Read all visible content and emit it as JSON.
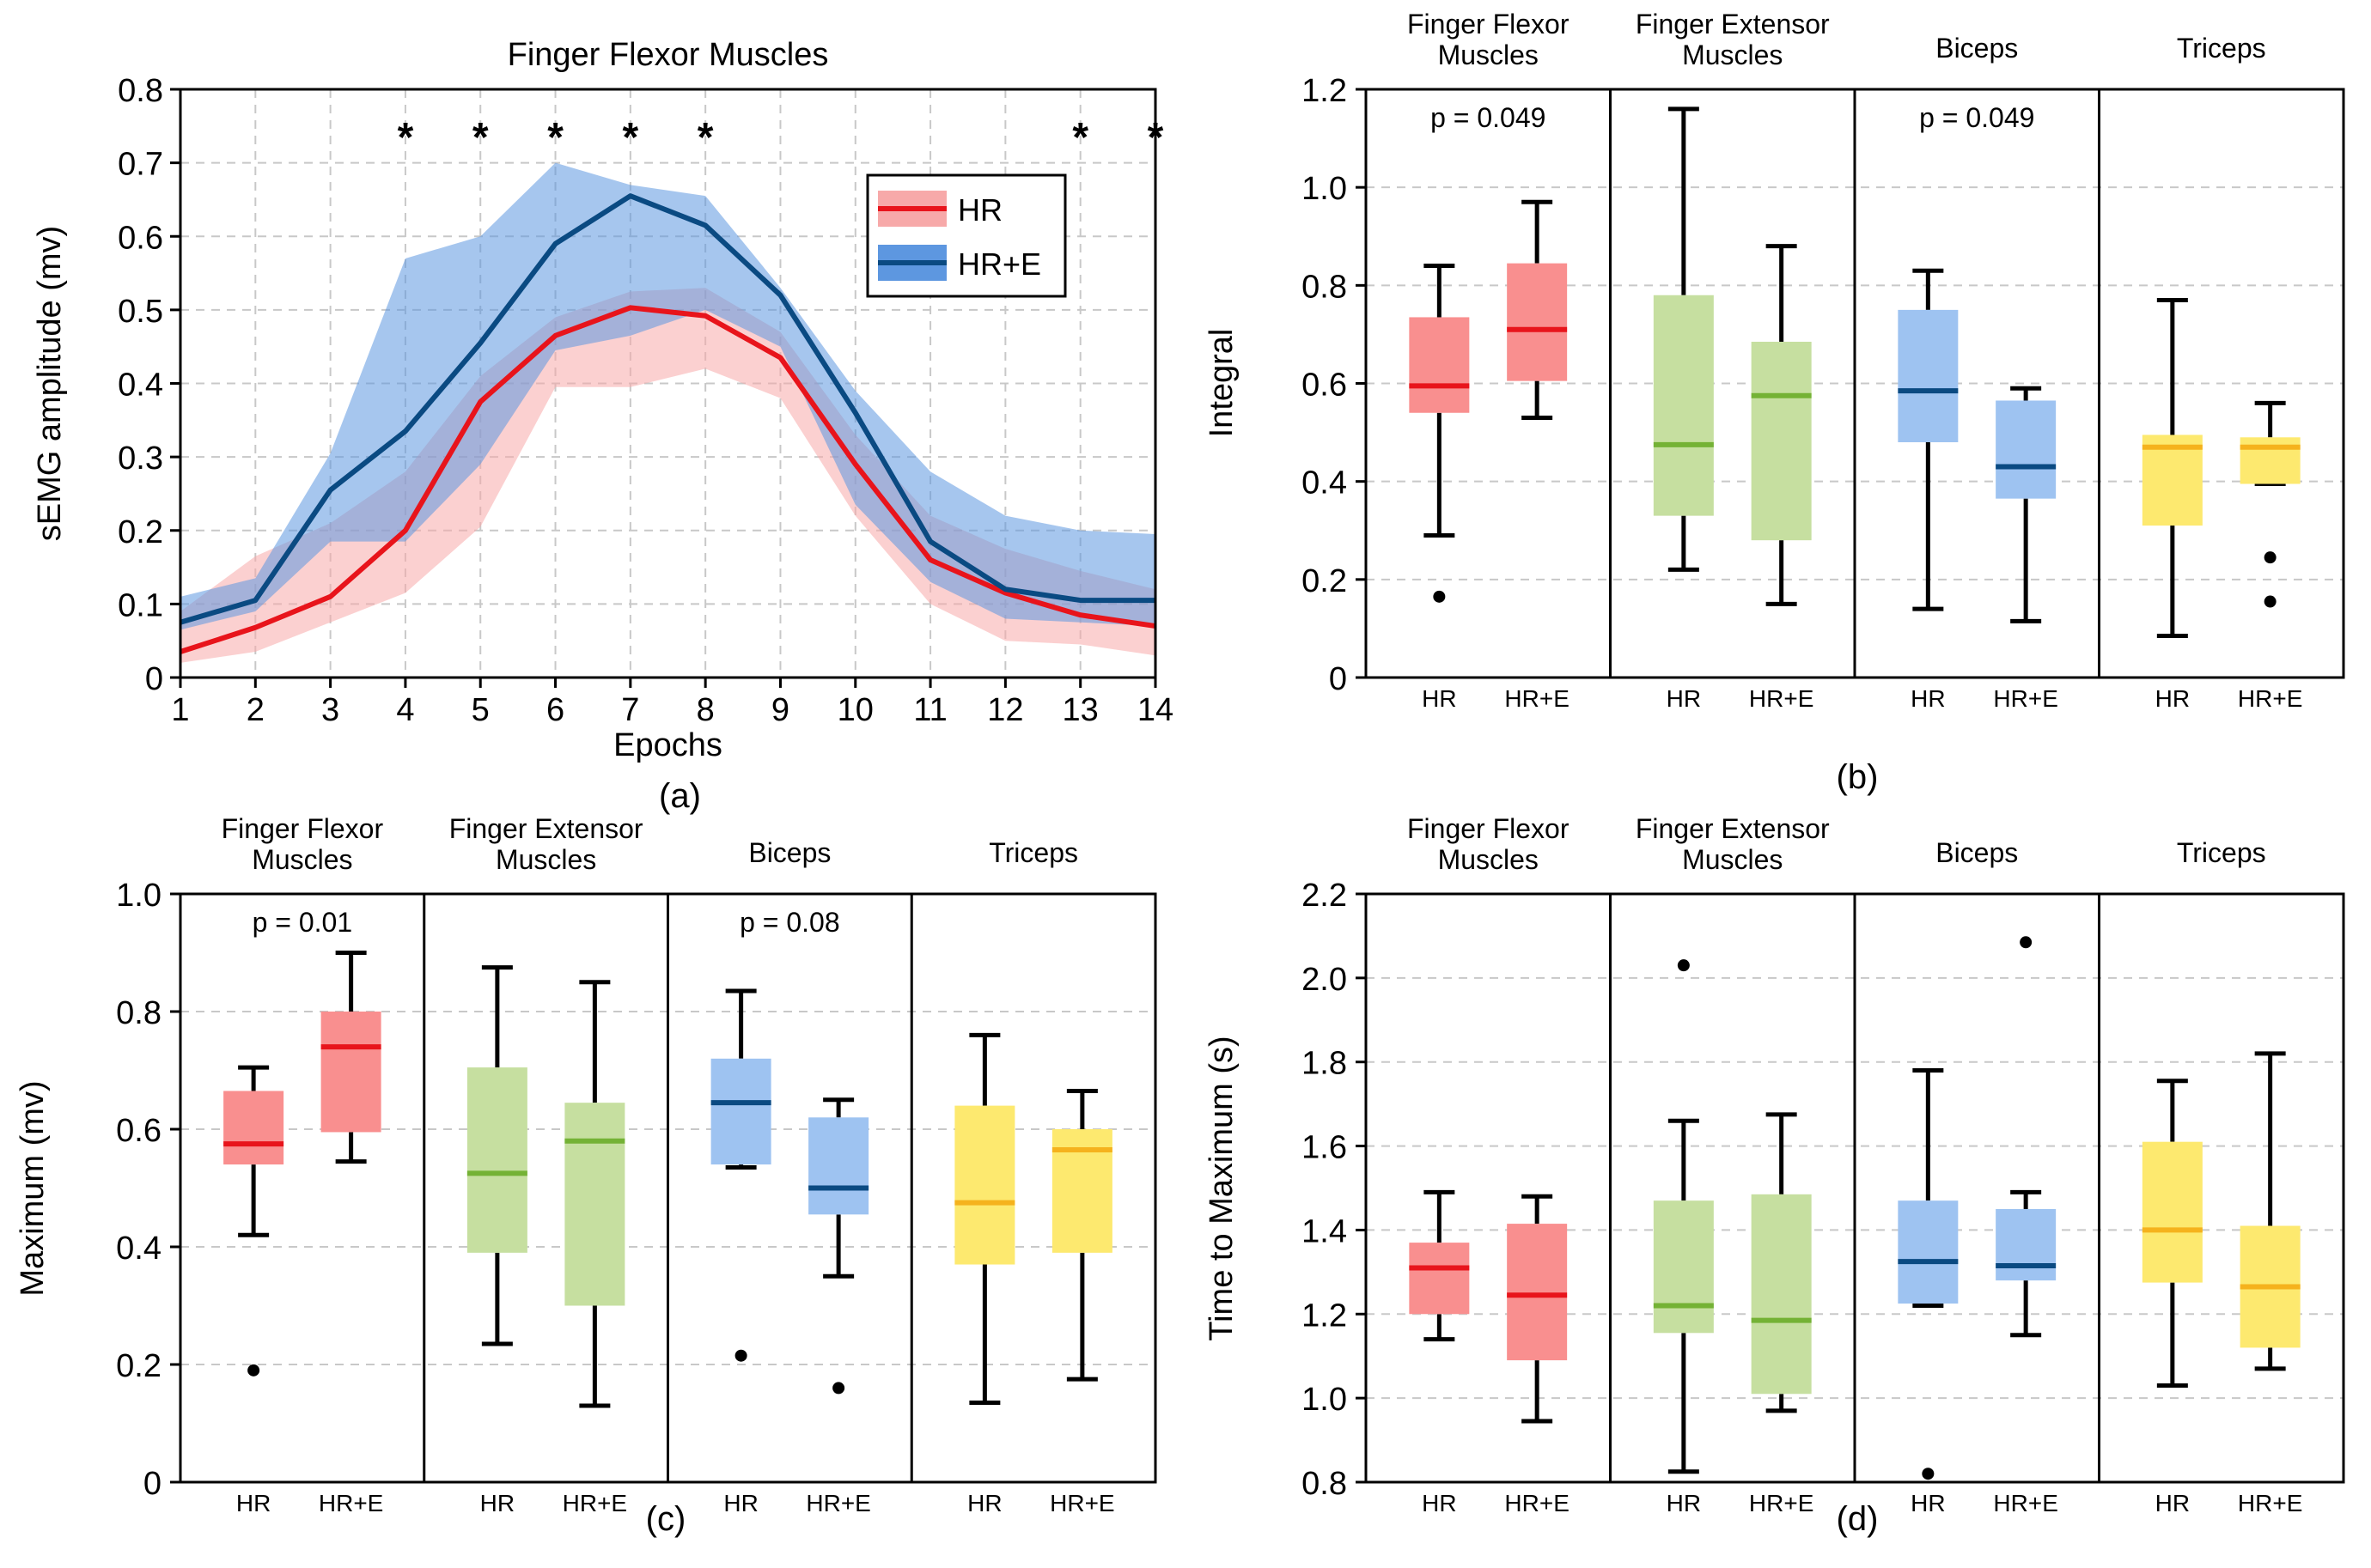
{
  "colors": {
    "hr_line": "#e8141b",
    "hr_band": "#f7a9a9",
    "hre_line": "#0a4a82",
    "hre_band": "#5d97e0",
    "overlap_line": "#9c2a52",
    "flexor_median": "#e8141b",
    "flexor_box": "#f98f8f",
    "extensor_median": "#74b235",
    "extensor_box": "#c6dfa0",
    "biceps_median": "#0a4a82",
    "biceps_box": "#9ec3f1",
    "triceps_median": "#f5b21d",
    "triceps_box": "#fde96f"
  },
  "chart_data": [
    {
      "id": "a",
      "type": "line",
      "panel_label": "(a)",
      "title": "Finger Flexor Muscles",
      "xlabel": "Epochs",
      "ylabel": "sEMG amplitude (mv)",
      "xlim": [
        1,
        14
      ],
      "ylim": [
        0,
        0.8
      ],
      "xticks": [
        "1",
        "2",
        "3",
        "4",
        "5",
        "6",
        "7",
        "8",
        "9",
        "10",
        "11",
        "12",
        "13",
        "14"
      ],
      "yticks": [
        "0",
        "0.1",
        "0.2",
        "0.3",
        "0.4",
        "0.5",
        "0.6",
        "0.7",
        "0.8"
      ],
      "x": [
        1,
        2,
        3,
        4,
        5,
        6,
        7,
        8,
        9,
        10,
        11,
        12,
        13,
        14
      ],
      "series": [
        {
          "name": "HR",
          "values": [
            0.035,
            0.068,
            0.11,
            0.2,
            0.375,
            0.465,
            0.503,
            0.492,
            0.435,
            0.29,
            0.16,
            0.115,
            0.085,
            0.07
          ],
          "upper": [
            0.09,
            0.165,
            0.21,
            0.28,
            0.41,
            0.49,
            0.525,
            0.53,
            0.47,
            0.33,
            0.22,
            0.175,
            0.145,
            0.12
          ],
          "lower": [
            0.02,
            0.035,
            0.075,
            0.115,
            0.205,
            0.395,
            0.395,
            0.42,
            0.38,
            0.22,
            0.1,
            0.05,
            0.045,
            0.03
          ]
        },
        {
          "name": "HR+E",
          "values": [
            0.075,
            0.105,
            0.255,
            0.335,
            0.455,
            0.59,
            0.655,
            0.615,
            0.52,
            0.36,
            0.185,
            0.12,
            0.105,
            0.105
          ],
          "upper": [
            0.11,
            0.135,
            0.305,
            0.57,
            0.6,
            0.7,
            0.67,
            0.655,
            0.53,
            0.39,
            0.28,
            0.22,
            0.2,
            0.195
          ],
          "lower": [
            0.065,
            0.09,
            0.185,
            0.185,
            0.29,
            0.445,
            0.465,
            0.5,
            0.45,
            0.235,
            0.13,
            0.08,
            0.075,
            0.07
          ]
        }
      ],
      "significance_marker": "*",
      "significant_epochs": [
        4,
        5,
        6,
        7,
        8,
        13,
        14
      ],
      "legend": [
        "HR",
        "HR+E"
      ]
    },
    {
      "id": "b",
      "type": "box",
      "panel_label": "(b)",
      "ylabel": "Integral",
      "ylim": [
        0,
        1.2
      ],
      "yticks": [
        "0",
        "0.2",
        "0.4",
        "0.6",
        "0.8",
        "1.0",
        "1.2"
      ],
      "groups": [
        {
          "title": "Finger Flexor Muscles",
          "pvalue": "p = 0.049",
          "color": "flexor",
          "boxes": [
            {
              "label": "HR",
              "whisker_low": 0.29,
              "q1": 0.54,
              "median": 0.595,
              "q3": 0.735,
              "whisker_high": 0.84,
              "outliers": [
                0.165
              ]
            },
            {
              "label": "HR+E",
              "whisker_low": 0.53,
              "q1": 0.605,
              "median": 0.71,
              "q3": 0.845,
              "whisker_high": 0.97,
              "outliers": []
            }
          ]
        },
        {
          "title": "Finger Extensor Muscles",
          "pvalue": "",
          "color": "extensor",
          "boxes": [
            {
              "label": "HR",
              "whisker_low": 0.22,
              "q1": 0.33,
              "median": 0.475,
              "q3": 0.78,
              "whisker_high": 1.16,
              "outliers": []
            },
            {
              "label": "HR+E",
              "whisker_low": 0.15,
              "q1": 0.28,
              "median": 0.575,
              "q3": 0.685,
              "whisker_high": 0.88,
              "outliers": []
            }
          ]
        },
        {
          "title": "Biceps",
          "pvalue": "p = 0.049",
          "color": "biceps",
          "boxes": [
            {
              "label": "HR",
              "whisker_low": 0.14,
              "q1": 0.48,
              "median": 0.585,
              "q3": 0.75,
              "whisker_high": 0.83,
              "outliers": []
            },
            {
              "label": "HR+E",
              "whisker_low": 0.115,
              "q1": 0.365,
              "median": 0.43,
              "q3": 0.565,
              "whisker_high": 0.59,
              "outliers": []
            }
          ]
        },
        {
          "title": "Triceps",
          "pvalue": "",
          "color": "triceps",
          "boxes": [
            {
              "label": "HR",
              "whisker_low": 0.085,
              "q1": 0.31,
              "median": 0.47,
              "q3": 0.495,
              "whisker_high": 0.77,
              "outliers": []
            },
            {
              "label": "HR+E",
              "whisker_low": 0.395,
              "q1": 0.395,
              "median": 0.47,
              "q3": 0.49,
              "whisker_high": 0.56,
              "outliers": [
                0.245,
                0.155
              ]
            }
          ]
        }
      ]
    },
    {
      "id": "c",
      "type": "box",
      "panel_label": "(c)",
      "ylabel": "Maximum  (mv)",
      "ylim": [
        0,
        1.0
      ],
      "yticks": [
        "0",
        "0.2",
        "0.4",
        "0.6",
        "0.8",
        "1.0"
      ],
      "groups": [
        {
          "title": "Finger Flexor Muscles",
          "pvalue": "p = 0.01",
          "color": "flexor",
          "boxes": [
            {
              "label": "HR",
              "whisker_low": 0.42,
              "q1": 0.54,
              "median": 0.575,
              "q3": 0.665,
              "whisker_high": 0.705,
              "outliers": [
                0.19
              ]
            },
            {
              "label": "HR+E",
              "whisker_low": 0.545,
              "q1": 0.595,
              "median": 0.74,
              "q3": 0.8,
              "whisker_high": 0.9,
              "outliers": []
            }
          ]
        },
        {
          "title": "Finger Extensor Muscles",
          "pvalue": "",
          "color": "extensor",
          "boxes": [
            {
              "label": "HR",
              "whisker_low": 0.235,
              "q1": 0.39,
              "median": 0.525,
              "q3": 0.705,
              "whisker_high": 0.875,
              "outliers": []
            },
            {
              "label": "HR+E",
              "whisker_low": 0.13,
              "q1": 0.3,
              "median": 0.58,
              "q3": 0.645,
              "whisker_high": 0.85,
              "outliers": []
            }
          ]
        },
        {
          "title": "Biceps",
          "pvalue": "p = 0.08",
          "color": "biceps",
          "boxes": [
            {
              "label": "HR",
              "whisker_low": 0.535,
              "q1": 0.54,
              "median": 0.645,
              "q3": 0.72,
              "whisker_high": 0.835,
              "outliers": [
                0.215
              ]
            },
            {
              "label": "HR+E",
              "whisker_low": 0.35,
              "q1": 0.455,
              "median": 0.5,
              "q3": 0.62,
              "whisker_high": 0.65,
              "outliers": [
                0.16
              ]
            }
          ]
        },
        {
          "title": "Triceps",
          "pvalue": "",
          "color": "triceps",
          "boxes": [
            {
              "label": "HR",
              "whisker_low": 0.135,
              "q1": 0.37,
              "median": 0.475,
              "q3": 0.64,
              "whisker_high": 0.76,
              "outliers": []
            },
            {
              "label": "HR+E",
              "whisker_low": 0.175,
              "q1": 0.39,
              "median": 0.565,
              "q3": 0.6,
              "whisker_high": 0.665,
              "outliers": []
            }
          ]
        }
      ]
    },
    {
      "id": "d",
      "type": "box",
      "panel_label": "(d)",
      "ylabel": "Time to Maximum (s)",
      "ylim": [
        0.8,
        2.2
      ],
      "yticks": [
        "0.8",
        "1.0",
        "1.2",
        "1.4",
        "1.6",
        "1.8",
        "2.0",
        "2.2"
      ],
      "groups": [
        {
          "title": "Finger Flexor Muscles",
          "pvalue": "",
          "color": "flexor",
          "boxes": [
            {
              "label": "HR",
              "whisker_low": 1.14,
              "q1": 1.2,
              "median": 1.31,
              "q3": 1.37,
              "whisker_high": 1.49,
              "outliers": []
            },
            {
              "label": "HR+E",
              "whisker_low": 0.945,
              "q1": 1.09,
              "median": 1.245,
              "q3": 1.415,
              "whisker_high": 1.48,
              "outliers": []
            }
          ]
        },
        {
          "title": "Finger Extensor Muscles",
          "pvalue": "",
          "color": "extensor",
          "boxes": [
            {
              "label": "HR",
              "whisker_low": 0.825,
              "q1": 1.155,
              "median": 1.22,
              "q3": 1.47,
              "whisker_high": 1.66,
              "outliers": [
                2.03
              ]
            },
            {
              "label": "HR+E",
              "whisker_low": 0.97,
              "q1": 1.01,
              "median": 1.185,
              "q3": 1.485,
              "whisker_high": 1.675,
              "outliers": []
            }
          ]
        },
        {
          "title": "Biceps",
          "pvalue": "",
          "color": "biceps",
          "boxes": [
            {
              "label": "HR",
              "whisker_low": 1.22,
              "q1": 1.225,
              "median": 1.325,
              "q3": 1.47,
              "whisker_high": 1.78,
              "outliers": [
                0.82
              ]
            },
            {
              "label": "HR+E",
              "whisker_low": 1.15,
              "q1": 1.28,
              "median": 1.315,
              "q3": 1.45,
              "whisker_high": 1.49,
              "outliers": [
                2.085
              ]
            }
          ]
        },
        {
          "title": "Triceps",
          "pvalue": "",
          "color": "triceps",
          "boxes": [
            {
              "label": "HR",
              "whisker_low": 1.03,
              "q1": 1.275,
              "median": 1.4,
              "q3": 1.61,
              "whisker_high": 1.755,
              "outliers": []
            },
            {
              "label": "HR+E",
              "whisker_low": 1.07,
              "q1": 1.12,
              "median": 1.265,
              "q3": 1.41,
              "whisker_high": 1.82,
              "outliers": []
            }
          ]
        }
      ]
    }
  ]
}
